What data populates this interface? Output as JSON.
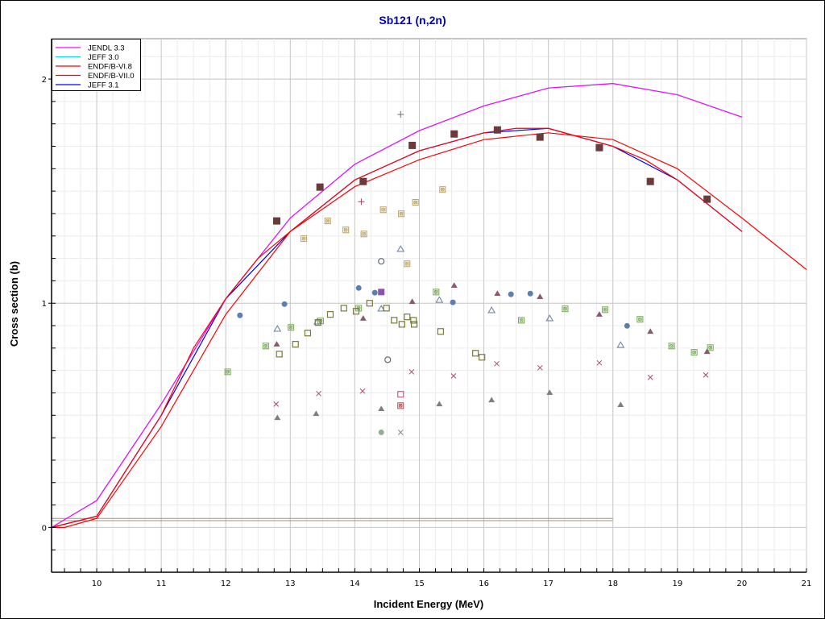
{
  "chart_data": {
    "type": "line",
    "title": "Sb121 (n,2n)",
    "xlabel": "Incident Energy (MeV)",
    "ylabel": "Cross section (b)",
    "xlim": [
      9.3,
      21.0
    ],
    "ylim": [
      -0.2,
      2.18
    ],
    "xticks": [
      10,
      11,
      12,
      13,
      14,
      15,
      16,
      17,
      18,
      19,
      20,
      21
    ],
    "yticks": [
      0,
      1,
      2
    ],
    "grid": true,
    "legend_position": "top-left",
    "colors": {
      "title": "#0000c0",
      "jendl": "#ff00ff",
      "jeff30": "#00e0e0",
      "endf": "#ff0000",
      "jeff31": "#0000ff",
      "baseline": "#a89070"
    },
    "series": [
      {
        "name": "JENDL 3.3",
        "color": "#ff00ff",
        "x": [
          9.3,
          10,
          11,
          12,
          13,
          14,
          15,
          16,
          17,
          18,
          19,
          20
        ],
        "y": [
          0,
          0.12,
          0.55,
          1.02,
          1.38,
          1.62,
          1.77,
          1.88,
          1.96,
          1.98,
          1.93,
          1.83
        ]
      },
      {
        "name": "JEFF 3.0",
        "color": "#00e0e0",
        "x": [
          9.3,
          10,
          11,
          12,
          13,
          14,
          15,
          16,
          17,
          18,
          19,
          20
        ],
        "y": [
          0,
          0.12,
          0.55,
          1.02,
          1.38,
          1.62,
          1.77,
          1.88,
          1.96,
          1.98,
          1.93,
          1.83
        ]
      },
      {
        "name": "ENDF/B-VI.8",
        "color": "#ff0000",
        "x": [
          9.3,
          9.5,
          10,
          11,
          12,
          13,
          14,
          15,
          16,
          17,
          18,
          19,
          20,
          21
        ],
        "y": [
          0,
          0,
          0.04,
          0.45,
          0.95,
          1.32,
          1.52,
          1.64,
          1.73,
          1.76,
          1.73,
          1.6,
          1.38,
          1.15
        ]
      },
      {
        "name": "ENDF/B-VII.0",
        "color": "#ff0000",
        "x": [
          9.3,
          10,
          11,
          11.5,
          12,
          12.5,
          13,
          14,
          15,
          16,
          16.5,
          17,
          18,
          18.5,
          19,
          20
        ],
        "y": [
          0,
          0.05,
          0.5,
          0.8,
          1.02,
          1.2,
          1.32,
          1.55,
          1.68,
          1.76,
          1.78,
          1.78,
          1.7,
          1.64,
          1.55,
          1.32
        ]
      },
      {
        "name": "JEFF 3.1",
        "color": "#0000ff",
        "x": [
          9.3,
          10,
          11,
          12,
          13,
          14,
          15,
          16,
          17,
          18,
          19,
          20
        ],
        "y": [
          0,
          0.05,
          0.5,
          1.02,
          1.32,
          1.55,
          1.68,
          1.76,
          1.78,
          1.7,
          1.55,
          1.32
        ]
      }
    ],
    "baselines": [
      {
        "color": "#a89070",
        "x": [
          9.3,
          18
        ],
        "y": [
          0.04,
          0.04
        ]
      },
      {
        "color": "#a89070",
        "x": [
          9.3,
          18
        ],
        "y": [
          0.03,
          0.03
        ]
      }
    ],
    "experimental": [
      {
        "marker": "filled-square",
        "color": "#6b3a3a",
        "size": 9,
        "x": [
          12.79,
          13.46,
          14.13,
          14.89,
          15.54,
          16.21,
          16.87,
          17.79,
          18.58,
          19.46
        ],
        "y": [
          1.367,
          1.518,
          1.543,
          1.704,
          1.755,
          1.773,
          1.741,
          1.694,
          1.543,
          1.464
        ]
      },
      {
        "marker": "crossed-square",
        "color": "#b8a060",
        "size": 7,
        "x": [
          13.21,
          13.58,
          13.86,
          14.14,
          14.44,
          14.72,
          14.94,
          15.36,
          14.81
        ],
        "y": [
          1.288,
          1.367,
          1.327,
          1.309,
          1.417,
          1.399,
          1.45,
          1.507,
          1.176
        ]
      },
      {
        "marker": "crossed-square",
        "color": "#70a850",
        "size": 7,
        "x": [
          12.03,
          12.62,
          13.01,
          13.47,
          14.06,
          15.26,
          16.58,
          17.26,
          17.88,
          18.42,
          18.91,
          19.26,
          19.51
        ],
        "y": [
          0.694,
          0.809,
          0.892,
          0.921,
          0.978,
          1.05,
          0.924,
          0.975,
          0.971,
          0.928,
          0.809,
          0.781,
          0.802
        ]
      },
      {
        "marker": "filled-circle",
        "color": "#5b7fb0",
        "size": 7,
        "x": [
          12.22,
          12.91,
          14.06,
          14.31,
          15.52,
          16.42,
          16.72,
          18.22
        ],
        "y": [
          0.946,
          0.996,
          1.068,
          1.047,
          1.004,
          1.04,
          1.043,
          0.899
        ]
      },
      {
        "marker": "filled-square",
        "color": "#9050b0",
        "size": 8,
        "x": [
          14.41
        ],
        "y": [
          1.05
        ]
      },
      {
        "marker": "filled-triangle",
        "color": "#8b5a6a",
        "size": 8,
        "x": [
          12.79,
          14.13,
          14.89,
          15.54,
          16.21,
          16.87,
          17.79,
          18.58,
          19.46
        ],
        "y": [
          0.817,
          0.932,
          1.007,
          1.079,
          1.043,
          1.029,
          0.95,
          0.874,
          0.784
        ]
      },
      {
        "marker": "open-triangle",
        "color": "#7088a8",
        "size": 8,
        "x": [
          12.8,
          13.42,
          14.41,
          14.71,
          15.31,
          16.12,
          17.02,
          18.12
        ],
        "y": [
          0.885,
          0.917,
          0.975,
          1.241,
          1.014,
          0.968,
          0.932,
          0.813
        ]
      },
      {
        "marker": "open-square",
        "color": "#7a7a3a",
        "size": 7,
        "x": [
          12.83,
          13.08,
          13.27,
          13.43,
          13.62,
          13.83,
          14.02,
          14.23,
          14.49,
          14.61,
          14.73,
          14.81,
          14.91,
          14.92,
          15.33,
          15.87,
          15.97
        ],
        "y": [
          0.773,
          0.817,
          0.867,
          0.914,
          0.95,
          0.978,
          0.964,
          1.0,
          0.978,
          0.924,
          0.906,
          0.939,
          0.924,
          0.906,
          0.874,
          0.777,
          0.759
        ]
      },
      {
        "marker": "filled-triangle",
        "color": "#808080",
        "size": 8,
        "x": [
          12.8,
          13.4,
          14.41,
          15.31,
          16.12,
          17.02,
          18.12
        ],
        "y": [
          0.489,
          0.507,
          0.529,
          0.55,
          0.568,
          0.601,
          0.547
        ]
      },
      {
        "marker": "cross",
        "color": "#b04870",
        "size": 6,
        "x": [
          12.78,
          13.44,
          14.12,
          14.88,
          15.53,
          16.2,
          16.87,
          17.79,
          18.58,
          19.44
        ],
        "y": [
          0.55,
          0.597,
          0.608,
          0.694,
          0.676,
          0.73,
          0.712,
          0.734,
          0.669,
          0.68
        ]
      },
      {
        "marker": "cross",
        "color": "#708870",
        "size": 6,
        "x": [
          14.71
        ],
        "y": [
          0.424
        ]
      },
      {
        "marker": "open-square",
        "color": "#c06090",
        "size": 7,
        "x": [
          14.71
        ],
        "y": [
          0.594
        ]
      },
      {
        "marker": "crossed-square",
        "color": "#b04848",
        "size": 7,
        "x": [
          14.71
        ],
        "y": [
          0.543
        ]
      },
      {
        "marker": "filled-circle",
        "color": "#90b090",
        "size": 7,
        "x": [
          14.41
        ],
        "y": [
          0.424
        ]
      },
      {
        "marker": "open-circle",
        "color": "#606878",
        "size": 7,
        "x": [
          14.41,
          14.51
        ],
        "y": [
          1.187,
          0.748
        ]
      },
      {
        "marker": "plus",
        "color": "#707070",
        "size": 8,
        "x": [
          14.71
        ],
        "y": [
          1.842
        ]
      },
      {
        "marker": "plus",
        "color": "#a04060",
        "size": 8,
        "x": [
          14.1
        ],
        "y": [
          1.453
        ]
      }
    ]
  }
}
